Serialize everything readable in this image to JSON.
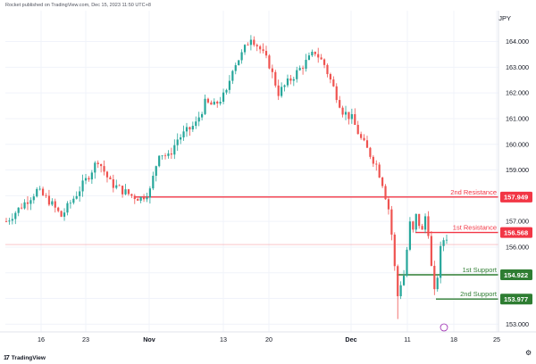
{
  "header": {
    "published_by": "Rocket published on TradingView.com, Dec 15, 2023 11:50 UTC+8"
  },
  "currency_label": "JPY",
  "footer": {
    "logo_text": "TradingView",
    "logo_mark": "17"
  },
  "colors": {
    "up": "#26a69a",
    "down": "#ef5350",
    "resistance": "#f23645",
    "support": "#2e7d32",
    "grid": "#f0f3fa",
    "current_price": "#f7a4aa"
  },
  "chart_data": {
    "type": "candlestick",
    "title": "",
    "xlabel": "",
    "ylabel": "JPY",
    "ylim": [
      152.7,
      165.2
    ],
    "y_ticks": [
      "164.000",
      "163.000",
      "162.000",
      "161.000",
      "160.000",
      "159.000",
      "158.000",
      "157.000",
      "156.000",
      "155.000",
      "154.000",
      "153.000"
    ],
    "x_ticks": [
      {
        "label": "16",
        "bold": false
      },
      {
        "label": "23",
        "bold": false
      },
      {
        "label": "Nov",
        "bold": true
      },
      {
        "label": "13",
        "bold": false
      },
      {
        "label": "20",
        "bold": false
      },
      {
        "label": "Dec",
        "bold": true
      },
      {
        "label": "11",
        "bold": false
      },
      {
        "label": "18",
        "bold": false
      },
      {
        "label": "25",
        "bold": false
      }
    ],
    "price_path": [
      [
        0,
        157.0
      ],
      [
        5,
        157.6
      ],
      [
        10,
        158.2
      ],
      [
        14,
        157.8
      ],
      [
        18,
        157.2
      ],
      [
        22,
        157.9
      ],
      [
        26,
        158.6
      ],
      [
        30,
        159.4
      ],
      [
        34,
        158.5
      ],
      [
        38,
        158.2
      ],
      [
        41,
        158.0
      ],
      [
        44,
        157.9
      ],
      [
        47,
        158.2
      ],
      [
        50,
        159.7
      ],
      [
        53,
        159.5
      ],
      [
        56,
        160.2
      ],
      [
        59,
        160.5
      ],
      [
        62,
        160.8
      ],
      [
        65,
        161.6
      ],
      [
        68,
        161.5
      ],
      [
        72,
        162.0
      ],
      [
        74,
        163.0
      ],
      [
        77,
        163.5
      ],
      [
        80,
        164.2
      ],
      [
        83,
        163.7
      ],
      [
        86,
        163.1
      ],
      [
        89,
        162.0
      ],
      [
        92,
        162.4
      ],
      [
        95,
        162.8
      ],
      [
        98,
        163.2
      ],
      [
        101,
        163.6
      ],
      [
        104,
        163.1
      ],
      [
        107,
        162.2
      ],
      [
        110,
        161.3
      ],
      [
        113,
        161.0
      ],
      [
        116,
        160.2
      ],
      [
        118,
        159.8
      ],
      [
        121,
        159.2
      ],
      [
        123,
        158.5
      ],
      [
        125,
        157.5
      ],
      [
        126,
        156.5
      ],
      [
        127,
        155.2
      ],
      [
        128,
        154.1
      ],
      [
        129,
        154.6
      ],
      [
        130,
        154.9
      ],
      [
        131,
        155.9
      ],
      [
        132,
        156.9
      ],
      [
        133,
        156.6
      ],
      [
        134,
        157.2
      ],
      [
        135,
        156.9
      ],
      [
        136,
        156.6
      ],
      [
        137,
        157.2
      ],
      [
        138,
        156.6
      ],
      [
        139,
        155.2
      ],
      [
        140,
        154.2
      ],
      [
        141,
        154.9
      ],
      [
        142,
        155.9
      ],
      [
        143,
        156.3
      ],
      [
        144,
        156.4
      ]
    ],
    "levels": [
      {
        "name": "2nd Resistance",
        "value": 157.949,
        "kind": "resistance",
        "badge": "157.949"
      },
      {
        "name": "1st Resistance",
        "value": 156.568,
        "kind": "resistance",
        "badge": "156.568"
      },
      {
        "name": "1st Support",
        "value": 154.922,
        "kind": "support",
        "badge": "154.922"
      },
      {
        "name": "2nd Support",
        "value": 153.977,
        "kind": "support",
        "badge": "153.977"
      }
    ],
    "current_price": 156.1,
    "grid": true
  }
}
